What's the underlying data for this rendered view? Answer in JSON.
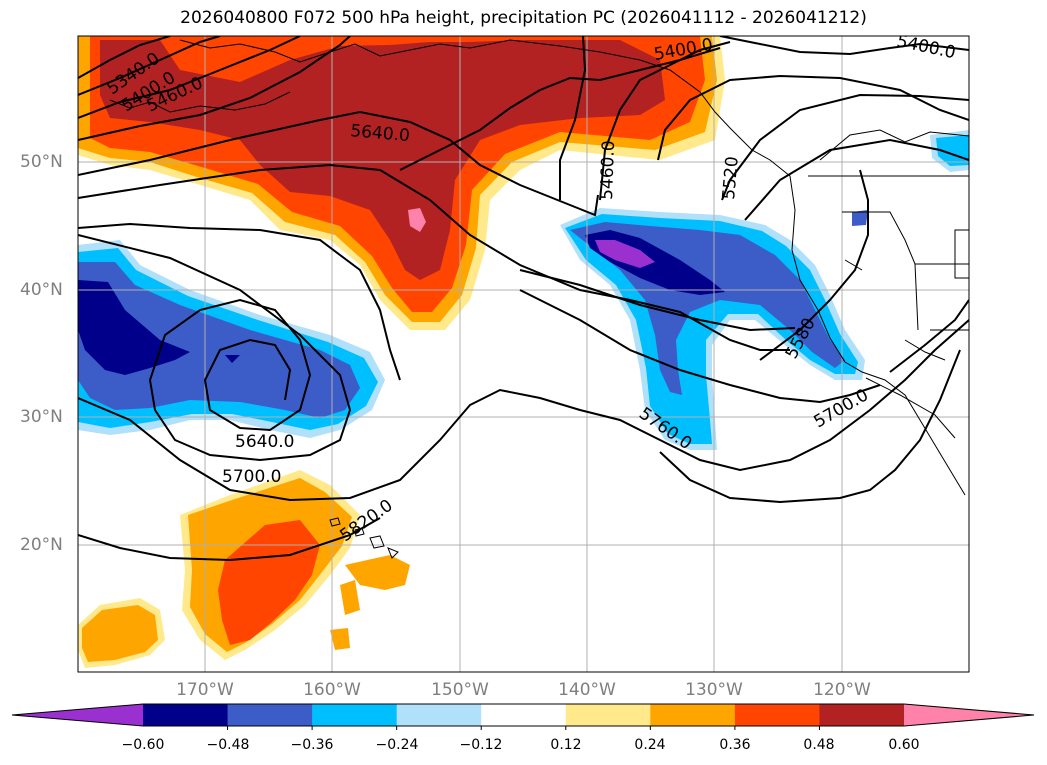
{
  "title": "2026040800 F072 500 hPa height, precipitation PC (2026041112 - 2026041212)",
  "latitude_labels": [
    "50°N",
    "40°N",
    "30°N",
    "20°N"
  ],
  "longitude_labels": [
    "170°W",
    "160°W",
    "150°W",
    "140°W",
    "130°W",
    "120°W"
  ],
  "contour_labels": [
    "5340.0",
    "5400.0",
    "5460.0",
    "5640.0",
    "5460.0",
    "5520",
    "5400.0",
    "5400.0",
    "5640.0",
    "5700.0",
    "5820.0",
    "5760.0",
    "5580",
    "5700.0"
  ],
  "colorbar": {
    "tick_labels": [
      "−0.60",
      "−0.48",
      "−0.36",
      "−0.24",
      "−0.12",
      "0.12",
      "0.24",
      "0.36",
      "0.48",
      "0.60"
    ],
    "colors": [
      "#9b30d0",
      "#00008b",
      "#3c5dc8",
      "#00bfff",
      "#b0e0fa",
      "#ffffff",
      "#ffe98a",
      "#ffa500",
      "#ff4500",
      "#b22222",
      "#ff82ab"
    ]
  }
}
